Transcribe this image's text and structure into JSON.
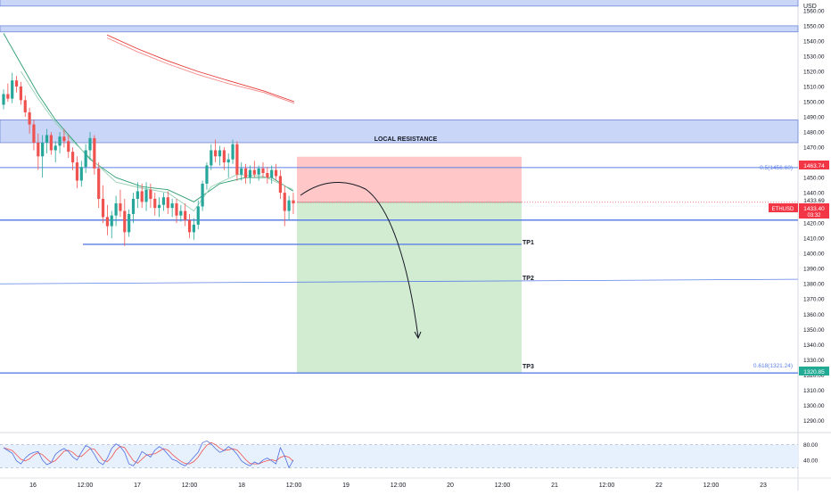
{
  "header": {
    "currency": "USD"
  },
  "annotations": {
    "zone_label": "LOCAL RESISTANCE",
    "tp1": "TP1",
    "tp2": "TP2",
    "tp3": "TP3",
    "fib_05": "0.5(1456.60)",
    "fib_0618": "0.618(1321.24)"
  },
  "price_tags": {
    "stop": "1463.74",
    "upper": "1433.69",
    "symbol": "ETHUSD",
    "last": "1433.40",
    "countdown": "03:32",
    "target": "1320.85"
  },
  "colors": {
    "up": "#26a69a",
    "down": "#ef5350",
    "zone_fill": "#c9d6f8",
    "zone_border": "#6f86d6",
    "line_blue": "#5c7fe6",
    "risk_fill": "#ffc7c7",
    "reward_fill": "#d2ecd2",
    "tag_red": "#f23645",
    "tag_green": "#22ab94"
  },
  "chart_data": {
    "type": "candlestick",
    "symbol": "ETHUSD",
    "currency": "USD",
    "y_axis": {
      "min": 1282,
      "max": 1567,
      "ticks": [
        1290,
        1300,
        1310,
        1320,
        1330,
        1340,
        1350,
        1360,
        1370,
        1380,
        1390,
        1400,
        1410,
        1420,
        1430,
        1440,
        1450,
        1460,
        1470,
        1480,
        1490,
        1500,
        1510,
        1520,
        1530,
        1540,
        1550,
        1560
      ]
    },
    "x_axis": {
      "ticks": [
        "16",
        "12:00",
        "17",
        "12:00",
        "18",
        "12:00",
        "19",
        "12:00",
        "20",
        "12:00",
        "21",
        "12:00",
        "22",
        "12:00",
        "23"
      ]
    },
    "candles": [
      [
        1498,
        1508,
        1495,
        1505
      ],
      [
        1505,
        1512,
        1500,
        1502
      ],
      [
        1502,
        1519,
        1499,
        1514
      ],
      [
        1514,
        1517,
        1506,
        1510
      ],
      [
        1510,
        1513,
        1498,
        1501
      ],
      [
        1501,
        1504,
        1490,
        1493
      ],
      [
        1493,
        1496,
        1479,
        1485
      ],
      [
        1485,
        1488,
        1468,
        1473
      ],
      [
        1473,
        1479,
        1455,
        1464
      ],
      [
        1464,
        1478,
        1450,
        1473
      ],
      [
        1473,
        1482,
        1466,
        1478
      ],
      [
        1478,
        1480,
        1465,
        1468
      ],
      [
        1468,
        1474,
        1460,
        1471
      ],
      [
        1471,
        1480,
        1466,
        1477
      ],
      [
        1477,
        1482,
        1470,
        1474
      ],
      [
        1474,
        1478,
        1463,
        1467
      ],
      [
        1467,
        1470,
        1455,
        1460
      ],
      [
        1460,
        1464,
        1443,
        1448
      ],
      [
        1448,
        1461,
        1444,
        1457
      ],
      [
        1457,
        1472,
        1453,
        1468
      ],
      [
        1468,
        1480,
        1462,
        1476
      ],
      [
        1476,
        1478,
        1452,
        1456
      ],
      [
        1456,
        1460,
        1430,
        1436
      ],
      [
        1436,
        1445,
        1420,
        1424
      ],
      [
        1424,
        1432,
        1412,
        1418
      ],
      [
        1418,
        1428,
        1410,
        1425
      ],
      [
        1425,
        1438,
        1418,
        1433
      ],
      [
        1433,
        1442,
        1424,
        1428
      ],
      [
        1428,
        1436,
        1405,
        1414
      ],
      [
        1414,
        1429,
        1411,
        1426
      ],
      [
        1426,
        1440,
        1420,
        1436
      ],
      [
        1436,
        1447,
        1430,
        1441
      ],
      [
        1441,
        1446,
        1430,
        1434
      ],
      [
        1434,
        1447,
        1428,
        1442
      ],
      [
        1442,
        1446,
        1430,
        1436
      ],
      [
        1436,
        1440,
        1425,
        1430
      ],
      [
        1430,
        1437,
        1424,
        1432
      ],
      [
        1432,
        1440,
        1428,
        1437
      ],
      [
        1437,
        1441,
        1426,
        1430
      ],
      [
        1430,
        1436,
        1424,
        1433
      ],
      [
        1433,
        1436,
        1420,
        1425
      ],
      [
        1425,
        1432,
        1421,
        1428
      ],
      [
        1428,
        1433,
        1418,
        1422
      ],
      [
        1422,
        1426,
        1410,
        1414
      ],
      [
        1414,
        1423,
        1409,
        1419
      ],
      [
        1419,
        1435,
        1416,
        1431
      ],
      [
        1431,
        1448,
        1428,
        1446
      ],
      [
        1446,
        1460,
        1442,
        1458
      ],
      [
        1458,
        1472,
        1455,
        1468
      ],
      [
        1468,
        1475,
        1460,
        1464
      ],
      [
        1464,
        1471,
        1458,
        1468
      ],
      [
        1468,
        1470,
        1455,
        1460
      ],
      [
        1460,
        1466,
        1450,
        1462
      ],
      [
        1462,
        1475,
        1459,
        1472
      ],
      [
        1472,
        1474,
        1448,
        1452
      ],
      [
        1452,
        1460,
        1448,
        1456
      ],
      [
        1456,
        1459,
        1446,
        1450
      ],
      [
        1450,
        1458,
        1446,
        1455
      ],
      [
        1455,
        1461,
        1450,
        1452
      ],
      [
        1452,
        1458,
        1448,
        1456
      ],
      [
        1456,
        1460,
        1450,
        1453
      ],
      [
        1453,
        1457,
        1446,
        1450
      ],
      [
        1450,
        1458,
        1446,
        1455
      ],
      [
        1455,
        1459,
        1448,
        1451
      ],
      [
        1451,
        1455,
        1436,
        1440
      ],
      [
        1440,
        1445,
        1418,
        1428
      ],
      [
        1428,
        1438,
        1422,
        1435
      ],
      [
        1435,
        1440,
        1426,
        1433
      ]
    ],
    "moving_averages": [
      {
        "name": "MA fast",
        "color": "#f48a8a",
        "points": [
          [
            0,
            1542
          ],
          [
            10,
            1533
          ],
          [
            20,
            1525
          ],
          [
            30,
            1518
          ],
          [
            40,
            1512
          ],
          [
            52,
            1506
          ],
          [
            62,
            1499
          ]
        ]
      },
      {
        "name": "MA slow",
        "color": "#e53935",
        "points": [
          [
            0,
            1544
          ],
          [
            10,
            1535
          ],
          [
            20,
            1527
          ],
          [
            30,
            1520
          ],
          [
            40,
            1514
          ],
          [
            52,
            1507
          ],
          [
            62,
            1500
          ]
        ]
      },
      {
        "name": "MA mid",
        "color": "#2e9e72",
        "points": [
          [
            0,
            1545
          ],
          [
            4,
            1525
          ],
          [
            8,
            1505
          ],
          [
            12,
            1488
          ],
          [
            16,
            1475
          ],
          [
            20,
            1462
          ],
          [
            26,
            1450
          ],
          [
            32,
            1444
          ],
          [
            38,
            1442
          ],
          [
            44,
            1434
          ],
          [
            50,
            1446
          ],
          [
            56,
            1450
          ],
          [
            62,
            1450
          ],
          [
            67,
            1441
          ]
        ]
      },
      {
        "name": "MA short",
        "color": "#9ad1b5",
        "points": [
          [
            4,
            1520
          ],
          [
            8,
            1502
          ],
          [
            12,
            1486
          ],
          [
            16,
            1474
          ],
          [
            20,
            1463
          ],
          [
            26,
            1447
          ],
          [
            32,
            1443
          ],
          [
            38,
            1440
          ],
          [
            44,
            1428
          ],
          [
            48,
            1444
          ],
          [
            54,
            1452
          ],
          [
            60,
            1451
          ],
          [
            67,
            1442
          ]
        ]
      }
    ],
    "zones": [
      {
        "label": "",
        "from": 1563,
        "to": 1575
      },
      {
        "label": "",
        "from": 1546,
        "to": 1550
      },
      {
        "label": "LOCAL RESISTANCE",
        "from": 1473,
        "to": 1488
      }
    ],
    "levels": {
      "fib_05": 1456.6,
      "fib_0618": 1321.24,
      "tp1": 1406,
      "tp2_start": 1380,
      "tp2_end": 1383,
      "tp3": 1320.85,
      "support": 1422
    },
    "position": {
      "type": "short",
      "entry": 1433.69,
      "stop": 1463.74,
      "target": 1320.85
    },
    "oscillator": {
      "ticks": [
        80.0,
        40.0
      ],
      "upper_band": 80,
      "lower_band": 20,
      "values": [
        72,
        65,
        58,
        38,
        30,
        45,
        55,
        60,
        62,
        40,
        28,
        33,
        55,
        64,
        70,
        62,
        48,
        40,
        60,
        78,
        72,
        55,
        35,
        28,
        45,
        70,
        82,
        75,
        60,
        30,
        25,
        40,
        62,
        55,
        48,
        66,
        75,
        68,
        55,
        42,
        38,
        30,
        25,
        35,
        48,
        60,
        85,
        90,
        82,
        70,
        60,
        65,
        75,
        68,
        55,
        38,
        30,
        25,
        35,
        30,
        40,
        45,
        38,
        30,
        72,
        50,
        20,
        40
      ]
    }
  }
}
